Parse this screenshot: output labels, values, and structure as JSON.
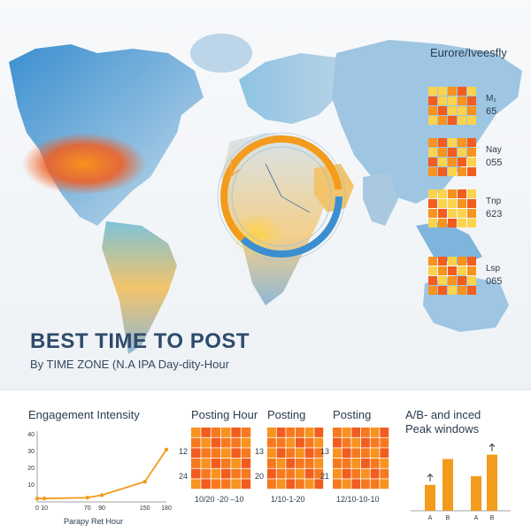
{
  "header": {
    "title": "BEST TIME TO POST",
    "subtitle": "By TIME ZONE (N.A IPA Day-dity-Hour"
  },
  "region_panel": {
    "title": "Eurore/Iveesfly",
    "cards": [
      {
        "label": "M₁",
        "value": "65"
      },
      {
        "label": "Nay",
        "value": "055"
      },
      {
        "label": "Tnp",
        "value": "623"
      },
      {
        "label": "Lsp",
        "value": "065"
      }
    ]
  },
  "colors": {
    "heat_high": "#f25c1f",
    "heat_mid": "#f7931e",
    "heat_low": "#fcd34d",
    "ocean_blue": "#3b8fd0",
    "accent_orange": "#f29b1d"
  },
  "engagement_panel": {
    "title": "Engagement Intensity",
    "xlabel": "Parapy Ret Hour"
  },
  "posting_panels": [
    {
      "title": "Posting Hour",
      "row_labels": [
        "12",
        "24"
      ],
      "footer": "10/20 -20 –10"
    },
    {
      "title": "Posting",
      "row_labels": [
        "13",
        "20"
      ],
      "footer": "1/10-1-20"
    },
    {
      "title": "Posting",
      "row_labels": [
        "13",
        "21"
      ],
      "footer": "12/10-10-10"
    }
  ],
  "ab_panel": {
    "title": "A/B- and inced",
    "subtitle": "Peak windows"
  },
  "chart_data": [
    {
      "type": "line",
      "title": "Engagement Intensity",
      "xlabel": "Parapy Ret Hour",
      "ylabel": "",
      "x": [
        0,
        10,
        70,
        90,
        150,
        180
      ],
      "x_tick_labels": [
        "0",
        "10",
        "70",
        "90",
        "150",
        "180"
      ],
      "y_ticks": [
        10,
        20,
        30,
        40
      ],
      "ylim": [
        0,
        42
      ],
      "series": [
        {
          "values": [
            2,
            2,
            2.5,
            4,
            12,
            31
          ]
        }
      ]
    },
    {
      "type": "bar",
      "title": "A/B- and inced",
      "subtitle": "Peak windows",
      "categories": [
        "A",
        "B",
        "A",
        "B"
      ],
      "values": [
        3,
        6,
        4,
        6.5
      ],
      "ylim": [
        0,
        8
      ]
    }
  ]
}
